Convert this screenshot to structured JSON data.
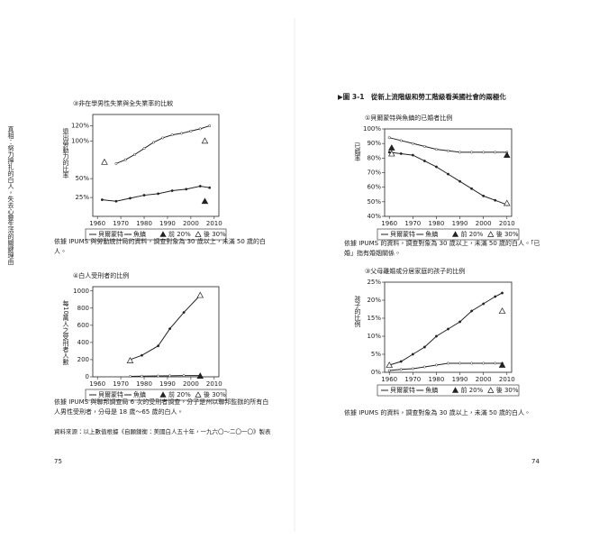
{
  "side_text": "真相：努力掙扎的白人，失去心靈生活的關鍵理由",
  "left_page": {
    "caption_1": "依據 IPUMS 與勞動統計局的資料，調查對象為 30 歲以上，未滿 50 歲的白人。",
    "caption_2": "依據 IPUMS 與聯邦調查局 6 次的受刑者調查，分子是州以聯邦監獄的所有白人男性受刑者，分母是 18 歲～65 歲的白人。",
    "source": "資料來源：以上數值根據《自願鏈衡：美國白人五十年，一九六〇～二〇一〇》製表",
    "page_number": "75"
  },
  "right_page": {
    "figure_title": "▶圖 3-1　從新上流階級和勞工階級看美國社會的兩極化",
    "caption_1": "依據 IPUMS 的資料，調查對象為 30 歲以上，未滿 50 歲的白人。「已婚」指有婚姻關係。",
    "caption_2": "依據 IPUMS 的資料，調查對象為 30 歲以上，未滿 50 歲的白人。",
    "page_number": "74"
  },
  "chart_data": [
    {
      "type": "line",
      "title": "③非在學男性失業與全失業率的比較",
      "y_label": "退出勞動力的比率",
      "xlim": [
        1958,
        2012
      ],
      "xticks": [
        1960,
        1970,
        1980,
        1990,
        2000,
        2010
      ],
      "ylim": [
        0,
        135
      ],
      "yticks": [
        {
          "value": 25,
          "label": "25%"
        },
        {
          "value": 50,
          "label": "50%"
        },
        {
          "value": 100,
          "label": "100%"
        },
        {
          "value": 120,
          "label": "120%"
        }
      ],
      "series": [
        {
          "name": "貝爾蒙特",
          "marker": "line",
          "color": "#222",
          "x": [
            1968,
            1972,
            1976,
            1980,
            1984,
            1988,
            1992,
            1996,
            2000,
            2004,
            2008
          ],
          "values": [
            70,
            75,
            82,
            90,
            98,
            104,
            108,
            110,
            113,
            116,
            120
          ]
        },
        {
          "name": "魚鎮",
          "marker": "line",
          "color": "#222",
          "x": [
            1962,
            1968,
            1974,
            1980,
            1986,
            1992,
            1998,
            2004,
            2008
          ],
          "values": [
            22,
            20,
            24,
            28,
            30,
            34,
            36,
            40,
            38
          ]
        },
        {
          "name": "前 20%",
          "marker": "filled",
          "color": "#222",
          "x": [
            2006
          ],
          "values": [
            20
          ]
        },
        {
          "name": "後 30%",
          "marker": "open",
          "color": "#222",
          "x": [
            1963,
            2006
          ],
          "values": [
            72,
            100
          ]
        }
      ]
    },
    {
      "type": "line",
      "title": "④白人受刑者的比例",
      "y_label": "每10萬人之受刑者人數",
      "xlim": [
        1958,
        2012
      ],
      "xticks": [
        1960,
        1970,
        1980,
        1990,
        2000,
        2010
      ],
      "ylim": [
        0,
        1050
      ],
      "yticks": [
        0,
        200,
        400,
        600,
        800,
        1000
      ],
      "series": [
        {
          "name": "貝爾蒙特",
          "marker": "line",
          "color": "#222",
          "x": [
            1974,
            1979,
            1986,
            1991,
            1997,
            2004
          ],
          "values": [
            5,
            8,
            10,
            12,
            14,
            15
          ]
        },
        {
          "name": "魚鎮",
          "marker": "line",
          "color": "#222",
          "x": [
            1974,
            1979,
            1986,
            1991,
            1997,
            2004
          ],
          "values": [
            200,
            250,
            360,
            560,
            750,
            950
          ]
        },
        {
          "name": "前 20%",
          "marker": "filled",
          "color": "#222",
          "x": [
            2004
          ],
          "values": [
            10
          ]
        },
        {
          "name": "後 30%",
          "marker": "open",
          "color": "#222",
          "x": [
            1974,
            2004
          ],
          "values": [
            190,
            950
          ]
        }
      ]
    },
    {
      "type": "line",
      "title": "①貝爾蒙特與魚鎮的已婚者比例",
      "y_label": "已婚率",
      "xlim": [
        1958,
        2012
      ],
      "xticks": [
        1960,
        1970,
        1980,
        1990,
        2000,
        2010
      ],
      "ylim": [
        40,
        100
      ],
      "yticks": [
        {
          "value": 40,
          "label": "40%"
        },
        {
          "value": 50,
          "label": "50%"
        },
        {
          "value": 60,
          "label": "60%"
        },
        {
          "value": 70,
          "label": "70%"
        },
        {
          "value": 80,
          "label": "80%"
        },
        {
          "value": 90,
          "label": "90%"
        },
        {
          "value": 100,
          "label": "100%"
        }
      ],
      "series": [
        {
          "name": "貝爾蒙特",
          "marker": "line",
          "color": "#222",
          "x": [
            1960,
            1965,
            1970,
            1975,
            1980,
            1985,
            1990,
            1995,
            2000,
            2005,
            2010
          ],
          "values": [
            94,
            92,
            90,
            88,
            86,
            85,
            84,
            84,
            84,
            84,
            84
          ]
        },
        {
          "name": "魚鎮",
          "marker": "line",
          "color": "#222",
          "x": [
            1960,
            1965,
            1970,
            1975,
            1980,
            1985,
            1990,
            1995,
            2000,
            2005,
            2010
          ],
          "values": [
            84,
            83,
            82,
            78,
            74,
            69,
            64,
            59,
            54,
            51,
            48
          ]
        },
        {
          "name": "前 20%",
          "marker": "filled",
          "color": "#222",
          "x": [
            1961,
            2010
          ],
          "values": [
            87,
            82
          ]
        },
        {
          "name": "後 30%",
          "marker": "open",
          "color": "#222",
          "x": [
            1961,
            2010
          ],
          "values": [
            83,
            49
          ]
        }
      ]
    },
    {
      "type": "line",
      "title": "③父母離婚或分居家庭的孩子的比例",
      "y_label": "孩子的比例",
      "xlim": [
        1958,
        2012
      ],
      "xticks": [
        1960,
        1970,
        1980,
        1990,
        2000,
        2010
      ],
      "ylim": [
        0,
        25
      ],
      "yticks": [
        {
          "value": 0,
          "label": "0%"
        },
        {
          "value": 5,
          "label": "5%"
        },
        {
          "value": 10,
          "label": "10%"
        },
        {
          "value": 15,
          "label": "15%"
        },
        {
          "value": 20,
          "label": "20%"
        },
        {
          "value": 25,
          "label": "25%"
        }
      ],
      "series": [
        {
          "name": "貝爾蒙特",
          "marker": "line",
          "color": "#222",
          "x": [
            1960,
            1965,
            1970,
            1975,
            1980,
            1985,
            1990,
            1995,
            2000,
            2005,
            2008
          ],
          "values": [
            0.5,
            0.8,
            1,
            1.5,
            2,
            2.5,
            2.5,
            2.5,
            2.5,
            2.5,
            2.5
          ]
        },
        {
          "name": "魚鎮",
          "marker": "line",
          "color": "#222",
          "x": [
            1960,
            1965,
            1970,
            1975,
            1980,
            1985,
            1990,
            1995,
            2000,
            2005,
            2008
          ],
          "values": [
            2,
            3,
            5,
            7,
            10,
            12,
            14,
            17,
            19,
            21,
            22
          ]
        },
        {
          "name": "前 20%",
          "marker": "filled",
          "color": "#222",
          "x": [
            2008
          ],
          "values": [
            2
          ]
        },
        {
          "name": "後 30%",
          "marker": "open",
          "color": "#222",
          "x": [
            1960,
            2008
          ],
          "values": [
            2,
            17
          ]
        }
      ]
    }
  ]
}
